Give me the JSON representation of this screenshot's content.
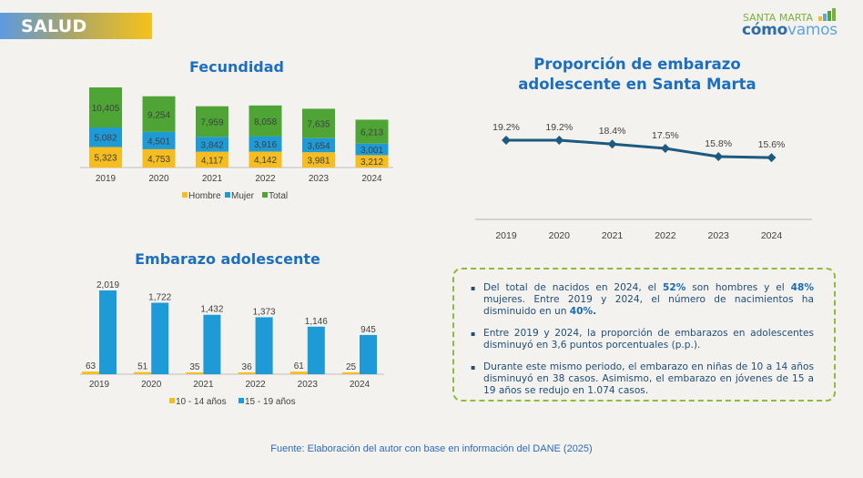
{
  "header": {
    "section_label": "SALUD"
  },
  "logo": {
    "line1": "SANTA MARTA",
    "line2a": "cómo",
    "line2b": "vamos",
    "icon": "bar-chart-icon"
  },
  "colors": {
    "hombre": "#f5bd1f",
    "mujer": "#1e9ad6",
    "total": "#4ea535",
    "line": "#1d5a80",
    "title": "#1c6fbf",
    "box_border": "#8dbb3d",
    "age_10_14": "#f5bd1f",
    "age_15_19": "#1e9ad6"
  },
  "info_box": {
    "items": [
      {
        "parts": [
          {
            "t": "Del total de nacidos en 2024, el "
          },
          {
            "t": "52%",
            "b": true
          },
          {
            "t": " son hombres y el "
          },
          {
            "t": "48%",
            "b": true
          },
          {
            "t": " mujeres. Entre 2019 y 2024, el número de nacimientos ha disminuido en un "
          },
          {
            "t": "40%.",
            "b": true
          }
        ]
      },
      {
        "parts": [
          {
            "t": "Entre 2019 y 2024, la proporción de embarazos en adolescentes disminuyó en 3,6 puntos porcentuales (p.p.)."
          }
        ]
      },
      {
        "parts": [
          {
            "t": "Durante este mismo periodo, el embarazo en niñas de 10 a 14 años disminuyó en 38 casos. Asimismo, el embarazo en jóvenes de 15 a 19 años se redujo en 1.074 casos."
          }
        ]
      }
    ]
  },
  "source": "Fuente: Elaboración del autor con base en información del DANE (2025)",
  "chart_data": [
    {
      "type": "bar",
      "stacked": true,
      "title": "Fecundidad",
      "categories": [
        "2019",
        "2020",
        "2021",
        "2022",
        "2023",
        "2024"
      ],
      "series": [
        {
          "name": "Hombre",
          "values": [
            5323,
            4753,
            4117,
            4142,
            3981,
            3212
          ],
          "labels": [
            "5,323",
            "4,753",
            "4,117",
            "4,142",
            "3,981",
            "3,212"
          ]
        },
        {
          "name": "Mujer",
          "values": [
            5082,
            4501,
            3842,
            3916,
            3654,
            3001
          ],
          "labels": [
            "5,082",
            "4,501",
            "3,842",
            "3,916",
            "3,654",
            "3,001"
          ]
        },
        {
          "name": "Total",
          "values": [
            10405,
            9254,
            7959,
            8058,
            7635,
            6213
          ],
          "labels": [
            "10,405",
            "9,254",
            "7,959",
            "8,058",
            "7,635",
            "6,213"
          ]
        }
      ],
      "legend": "bottom",
      "grid": false
    },
    {
      "type": "line",
      "title": "Proporción de embarazo adolescente en Santa Marta",
      "categories": [
        "2019",
        "2020",
        "2021",
        "2022",
        "2023",
        "2024"
      ],
      "series": [
        {
          "name": "Proporción",
          "values": [
            19.2,
            19.2,
            18.4,
            17.5,
            15.8,
            15.6
          ],
          "labels": [
            "19.2%",
            "19.2%",
            "18.4%",
            "17.5%",
            "15.8%",
            "15.6%"
          ]
        }
      ],
      "ylim": [
        0,
        22
      ],
      "grid": false,
      "legend": "none"
    },
    {
      "type": "bar",
      "title": "Embarazo adolescente",
      "categories": [
        "2019",
        "2020",
        "2021",
        "2022",
        "2023",
        "2024"
      ],
      "series": [
        {
          "name": "10 - 14 años",
          "values": [
            63,
            51,
            35,
            36,
            61,
            25
          ],
          "labels": [
            "63",
            "51",
            "35",
            "36",
            "61",
            "25"
          ]
        },
        {
          "name": "15 - 19 años",
          "values": [
            2019,
            1722,
            1432,
            1373,
            1146,
            945
          ],
          "labels": [
            "2,019",
            "1,722",
            "1,432",
            "1,373",
            "1,146",
            "945"
          ]
        }
      ],
      "legend": "bottom",
      "grid": false
    }
  ]
}
